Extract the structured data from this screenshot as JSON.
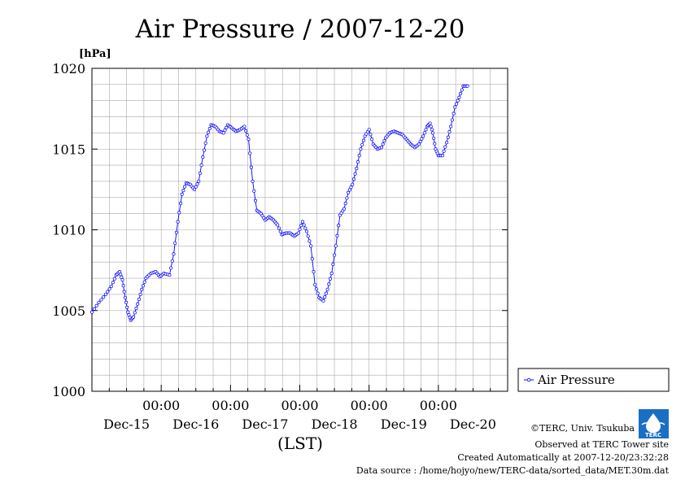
{
  "chart_data": {
    "type": "line",
    "title": "Air Pressure / 2007-12-20",
    "ylabel": "[hPa]",
    "xlabel": "(LST)",
    "ylim": [
      1000,
      1020
    ],
    "xlim": [
      0,
      6
    ],
    "y_ticks": [
      1000,
      1005,
      1010,
      1015,
      1020
    ],
    "y_tick_labels": [
      "1000",
      "1005",
      "1010",
      "1015",
      "1020"
    ],
    "x_time_tick_positions": [
      1,
      2,
      3,
      4,
      5
    ],
    "x_time_tick_labels": [
      "00:00",
      "00:00",
      "00:00",
      "00:00",
      "00:00"
    ],
    "x_day_positions": [
      0.5,
      1.5,
      2.5,
      3.5,
      4.5,
      5.5
    ],
    "x_day_labels": [
      "Dec-15",
      "Dec-16",
      "Dec-17",
      "Dec-18",
      "Dec-19",
      "Dec-20"
    ],
    "legend_position": "right",
    "series": [
      {
        "name": "Air Pressure",
        "color": "#0000ff",
        "marker": "circle",
        "points": [
          [
            0.0,
            1004.9
          ],
          [
            0.1,
            1005.5
          ],
          [
            0.2,
            1006.0
          ],
          [
            0.28,
            1006.5
          ],
          [
            0.35,
            1007.2
          ],
          [
            0.4,
            1007.4
          ],
          [
            0.44,
            1006.9
          ],
          [
            0.48,
            1005.8
          ],
          [
            0.52,
            1004.9
          ],
          [
            0.56,
            1004.4
          ],
          [
            0.6,
            1004.6
          ],
          [
            0.66,
            1005.4
          ],
          [
            0.72,
            1006.3
          ],
          [
            0.78,
            1007.0
          ],
          [
            0.85,
            1007.3
          ],
          [
            0.92,
            1007.4
          ],
          [
            0.98,
            1007.1
          ],
          [
            1.04,
            1007.3
          ],
          [
            1.12,
            1007.2
          ],
          [
            1.18,
            1008.5
          ],
          [
            1.24,
            1010.5
          ],
          [
            1.3,
            1012.2
          ],
          [
            1.36,
            1012.9
          ],
          [
            1.42,
            1012.8
          ],
          [
            1.48,
            1012.5
          ],
          [
            1.54,
            1013.0
          ],
          [
            1.6,
            1014.5
          ],
          [
            1.66,
            1015.8
          ],
          [
            1.72,
            1016.5
          ],
          [
            1.78,
            1016.4
          ],
          [
            1.84,
            1016.1
          ],
          [
            1.9,
            1016.0
          ],
          [
            1.96,
            1016.5
          ],
          [
            2.02,
            1016.3
          ],
          [
            2.08,
            1016.1
          ],
          [
            2.14,
            1016.2
          ],
          [
            2.2,
            1016.4
          ],
          [
            2.26,
            1015.6
          ],
          [
            2.32,
            1013.0
          ],
          [
            2.38,
            1011.2
          ],
          [
            2.44,
            1011.0
          ],
          [
            2.5,
            1010.6
          ],
          [
            2.56,
            1010.8
          ],
          [
            2.62,
            1010.6
          ],
          [
            2.68,
            1010.3
          ],
          [
            2.74,
            1009.7
          ],
          [
            2.8,
            1009.8
          ],
          [
            2.86,
            1009.8
          ],
          [
            2.92,
            1009.6
          ],
          [
            2.98,
            1009.8
          ],
          [
            3.04,
            1010.5
          ],
          [
            3.1,
            1009.9
          ],
          [
            3.16,
            1009.0
          ],
          [
            3.22,
            1006.6
          ],
          [
            3.28,
            1005.8
          ],
          [
            3.34,
            1005.6
          ],
          [
            3.4,
            1006.3
          ],
          [
            3.46,
            1007.3
          ],
          [
            3.52,
            1009.0
          ],
          [
            3.58,
            1010.9
          ],
          [
            3.64,
            1011.3
          ],
          [
            3.7,
            1012.3
          ],
          [
            3.76,
            1012.8
          ],
          [
            3.82,
            1013.8
          ],
          [
            3.88,
            1015.0
          ],
          [
            3.94,
            1015.8
          ],
          [
            4.0,
            1016.2
          ],
          [
            4.06,
            1015.3
          ],
          [
            4.12,
            1015.0
          ],
          [
            4.18,
            1015.1
          ],
          [
            4.24,
            1015.7
          ],
          [
            4.3,
            1016.0
          ],
          [
            4.36,
            1016.1
          ],
          [
            4.42,
            1016.0
          ],
          [
            4.48,
            1015.9
          ],
          [
            4.54,
            1015.6
          ],
          [
            4.6,
            1015.3
          ],
          [
            4.66,
            1015.1
          ],
          [
            4.72,
            1015.3
          ],
          [
            4.78,
            1015.8
          ],
          [
            4.84,
            1016.4
          ],
          [
            4.88,
            1016.6
          ],
          [
            4.92,
            1016.0
          ],
          [
            4.96,
            1015.0
          ],
          [
            5.0,
            1014.6
          ],
          [
            5.06,
            1014.6
          ],
          [
            5.12,
            1015.4
          ],
          [
            5.18,
            1016.4
          ],
          [
            5.24,
            1017.6
          ],
          [
            5.3,
            1018.2
          ],
          [
            5.36,
            1018.9
          ],
          [
            5.42,
            1018.9
          ]
        ]
      }
    ]
  },
  "footer": {
    "copyright": "©TERC, Univ. Tsukuba",
    "observed": "Observed at TERC Tower site",
    "created": "Created Automatically at 2007-12-20/23:32:28",
    "source": "Data source : /home/hojyo/new/TERC-data/sorted_data/MET.30m.dat"
  },
  "logo": {
    "text": "TERC",
    "color": "#1a6fc4"
  }
}
